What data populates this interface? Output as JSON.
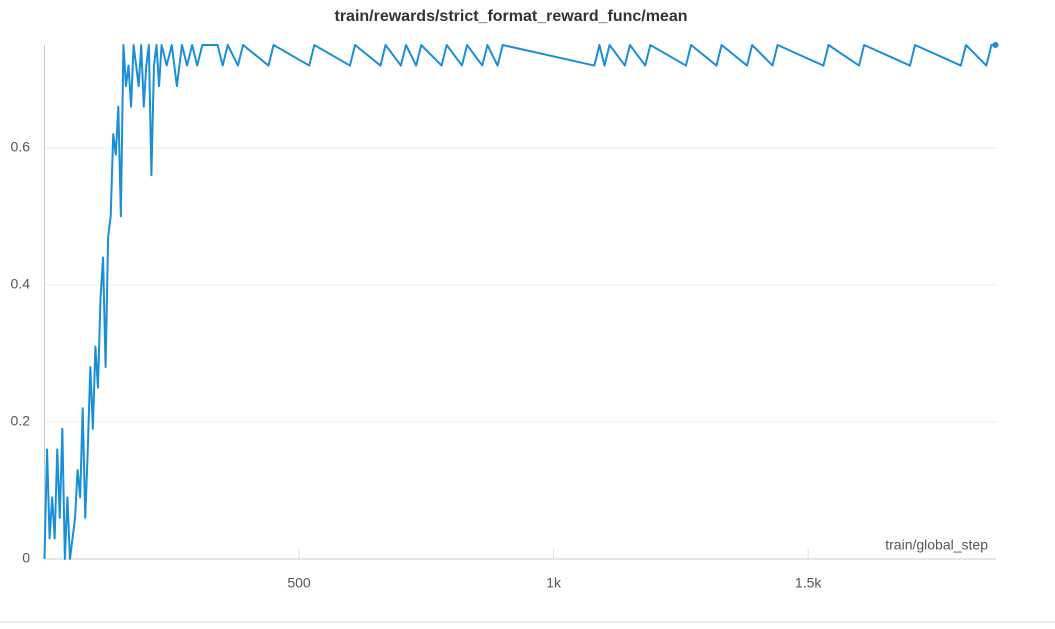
{
  "chart_data": {
    "type": "line",
    "title": "train/rewards/strict_format_reward_func/mean",
    "x_label": "train/global_step",
    "x": [
      0,
      5,
      10,
      15,
      20,
      25,
      30,
      35,
      40,
      45,
      50,
      55,
      60,
      65,
      70,
      75,
      80,
      85,
      90,
      95,
      100,
      105,
      110,
      115,
      120,
      125,
      130,
      135,
      140,
      145,
      150,
      155,
      160,
      165,
      170,
      175,
      180,
      185,
      190,
      195,
      200,
      205,
      210,
      215,
      220,
      225,
      230,
      240,
      250,
      260,
      270,
      280,
      290,
      300,
      310,
      340,
      350,
      360,
      380,
      390,
      440,
      450,
      520,
      530,
      600,
      610,
      660,
      670,
      700,
      710,
      730,
      740,
      780,
      790,
      820,
      830,
      860,
      870,
      890,
      900,
      1080,
      1090,
      1100,
      1110,
      1140,
      1150,
      1180,
      1190,
      1260,
      1270,
      1320,
      1330,
      1380,
      1390,
      1430,
      1440,
      1530,
      1540,
      1600,
      1610,
      1700,
      1710,
      1800,
      1810,
      1850,
      1860,
      1868
    ],
    "series": [
      {
        "name": "strict_format_reward_func",
        "color": "#1a8fd6",
        "values": [
          0,
          0.16,
          0.03,
          0.09,
          0.03,
          0.16,
          0.06,
          0.19,
          0,
          0.09,
          0,
          0.03,
          0.06,
          0.13,
          0.09,
          0.22,
          0.06,
          0.16,
          0.28,
          0.19,
          0.31,
          0.25,
          0.38,
          0.44,
          0.28,
          0.47,
          0.5,
          0.62,
          0.59,
          0.66,
          0.5,
          0.75,
          0.69,
          0.72,
          0.66,
          0.75,
          0.72,
          0.69,
          0.75,
          0.66,
          0.72,
          0.75,
          0.56,
          0.72,
          0.75,
          0.69,
          0.75,
          0.72,
          0.75,
          0.69,
          0.75,
          0.72,
          0.75,
          0.72,
          0.75,
          0.75,
          0.72,
          0.75,
          0.72,
          0.75,
          0.72,
          0.75,
          0.72,
          0.75,
          0.72,
          0.75,
          0.72,
          0.75,
          0.72,
          0.75,
          0.72,
          0.75,
          0.72,
          0.75,
          0.72,
          0.75,
          0.72,
          0.75,
          0.72,
          0.75,
          0.72,
          0.75,
          0.72,
          0.75,
          0.72,
          0.75,
          0.72,
          0.75,
          0.72,
          0.75,
          0.72,
          0.75,
          0.72,
          0.75,
          0.72,
          0.75,
          0.72,
          0.75,
          0.72,
          0.75,
          0.72,
          0.75,
          0.72,
          0.75,
          0.72,
          0.75,
          0.75
        ]
      }
    ],
    "xlim": [
      0,
      1869
    ],
    "ylim": [
      0,
      0.75
    ],
    "xticks": [
      500,
      {
        "value": 1000,
        "label": "1k"
      },
      {
        "value": 1500,
        "label": "1.5k"
      }
    ],
    "yticks": [
      0,
      0.2,
      0.4,
      0.6
    ],
    "grid": true
  }
}
